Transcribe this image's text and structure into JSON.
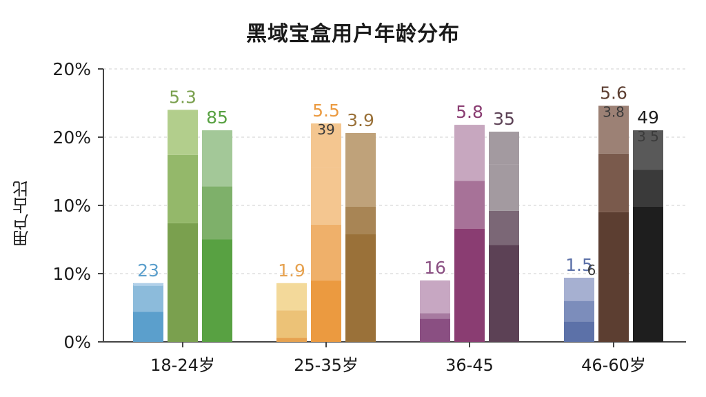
{
  "chart_data": {
    "type": "bar",
    "title": "黑域宝盒用户年龄分布",
    "ylabel": "用户占比",
    "xlabel": "",
    "y_tick_labels": [
      "0%",
      "10%",
      "10%",
      "20%",
      "20%"
    ],
    "ylim": [
      0,
      20
    ],
    "grid": "horizontal dashed",
    "categories": [
      "18-24岁",
      "25-35岁",
      "36-45",
      "46-60岁"
    ],
    "groups": [
      {
        "category": "18-24岁",
        "bars": [
          {
            "value": 4.3,
            "label": "23",
            "colors": [
              "#5b9fcc",
              "#8cbbdb",
              "#b5d3ea"
            ],
            "segments": [
              2.2,
              2.1
            ]
          },
          {
            "value": 17.0,
            "label": "5.3",
            "colors": [
              "#7aa04e",
              "#94b86a",
              "#b2ce8c"
            ],
            "segments": [
              8.7,
              5.0,
              3.3
            ]
          },
          {
            "value": 15.5,
            "label": "85",
            "colors": [
              "#58a142",
              "#7eb06a",
              "#a3c898"
            ],
            "segments": [
              7.5,
              3.9,
              4.1
            ]
          }
        ]
      },
      {
        "category": "25-35岁",
        "bars": [
          {
            "value": 4.3,
            "label": "1.9",
            "label2": "",
            "colors": [
              "#e6a250",
              "#ecc277",
              "#f3d99a"
            ],
            "segments": [
              0.3,
              2.0,
              2.0
            ]
          },
          {
            "value": 16.0,
            "label": "5.5",
            "label2": "39",
            "colors": [
              "#eb9a40",
              "#efb06a",
              "#f4c690"
            ],
            "segments": [
              4.5,
              4.1,
              4.2,
              3.2
            ]
          },
          {
            "value": 15.3,
            "label": "3.9",
            "label2": "",
            "colors": [
              "#9a7139",
              "#a88555",
              "#bfa27a"
            ],
            "segments": [
              7.9,
              2.0,
              5.4
            ]
          }
        ]
      },
      {
        "category": "36-45",
        "bars": [
          {
            "value": 4.5,
            "label": "16",
            "colors": [
              "#8a4f82",
              "#a77aa0",
              "#c7a7c2"
            ],
            "segments": [
              1.7,
              0.4,
              2.4
            ]
          },
          {
            "value": 15.9,
            "label": "5.8",
            "colors": [
              "#8a3d72",
              "#a77298",
              "#c7a7bf"
            ],
            "segments": [
              8.3,
              3.5,
              4.1
            ]
          },
          {
            "value": 15.4,
            "label": "35",
            "colors": [
              "#5c4155",
              "#7b6776",
              "#a39aa0"
            ],
            "segments": [
              7.1,
              2.5,
              3.4,
              2.4
            ]
          }
        ]
      },
      {
        "category": "46-60岁",
        "bars": [
          {
            "value": 4.7,
            "label": "1.5",
            "label2": "6",
            "colors": [
              "#5c71a8",
              "#7c8dbb",
              "#a6b0d1"
            ],
            "segments": [
              1.5,
              1.5,
              1.7
            ]
          },
          {
            "value": 17.3,
            "label": "5.6",
            "label2": "3.8",
            "colors": [
              "#5c3e31",
              "#7a5a4c",
              "#9c8175"
            ],
            "segments": [
              9.5,
              4.3,
              3.5
            ]
          },
          {
            "value": 15.5,
            "label": "49",
            "label2": "3 5",
            "colors": [
              "#1e1e1e",
              "#3a3a3a",
              "#595959"
            ],
            "segments": [
              9.9,
              2.7,
              2.9
            ]
          }
        ]
      }
    ]
  }
}
